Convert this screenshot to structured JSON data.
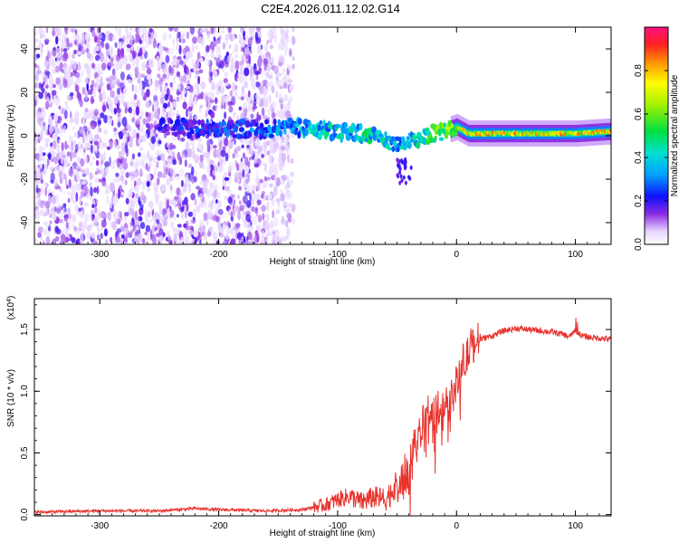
{
  "title": "C2E4.2026.011.12.02.G14",
  "chart_data": [
    {
      "type": "heatmap",
      "name": "spectrogram",
      "xlabel": "Height of straight line (km)",
      "ylabel": "Frequency (Hz)",
      "xlim": [
        -355,
        130
      ],
      "ylim": [
        -50,
        50
      ],
      "xticks": [
        -300,
        -200,
        -100,
        0,
        100
      ],
      "xtick_labels": [
        "-300",
        "-200",
        "-100",
        "0",
        "100"
      ],
      "yticks": [
        -40,
        -20,
        0,
        20,
        40
      ],
      "ytick_labels": [
        "-40",
        "-20",
        "0",
        "20",
        "40"
      ],
      "colorbar": {
        "label": "Normalized spectral amplitude",
        "range": [
          0,
          1
        ],
        "ticks": [
          0.0,
          0.2,
          0.4,
          0.6,
          0.8
        ],
        "tick_labels": [
          "0.0",
          "0.2",
          "0.4",
          "0.6",
          "0.8"
        ]
      },
      "ridge": {
        "x": [
          -355,
          -300,
          -250,
          -200,
          -160,
          -140,
          -120,
          -100,
          -80,
          -70,
          -60,
          -50,
          -40,
          -30,
          -20,
          -10,
          0,
          10,
          30,
          60,
          100,
          130
        ],
        "freq": [
          3,
          3,
          4,
          3,
          3,
          4,
          3,
          2,
          1,
          0,
          -2,
          -4,
          -3,
          -1,
          1,
          2,
          4,
          1,
          1,
          1,
          1,
          2
        ],
        "amplitude": [
          0.15,
          0.15,
          0.2,
          0.25,
          0.3,
          0.35,
          0.4,
          0.42,
          0.45,
          0.45,
          0.4,
          0.38,
          0.4,
          0.45,
          0.55,
          0.62,
          0.7,
          0.65,
          0.6,
          0.6,
          0.6,
          0.6
        ]
      },
      "noise_region_until": -145
    },
    {
      "type": "line",
      "name": "snr",
      "xlabel": "Height of straight line (km)",
      "ylabel": "SNR (10 * v/v)",
      "multiplier_label": "(x10",
      "multiplier_exponent": "4",
      "multiplier_close": ")",
      "xlim": [
        -355,
        130
      ],
      "ylim": [
        -0.01,
        1.75
      ],
      "xticks": [
        -300,
        -200,
        -100,
        0,
        100
      ],
      "xtick_labels": [
        "-300",
        "-200",
        "-100",
        "0",
        "100"
      ],
      "yticks": [
        0.0,
        0.5,
        1.0,
        1.5
      ],
      "ytick_labels": [
        "0.0",
        "0.5",
        "1.0",
        "1.5"
      ],
      "series": [
        {
          "name": "SNR",
          "color": "#e8322c",
          "x": [
            -355,
            -300,
            -250,
            -220,
            -200,
            -160,
            -130,
            -110,
            -100,
            -90,
            -80,
            -70,
            -60,
            -50,
            -45,
            -40,
            -35,
            -30,
            -25,
            -20,
            -15,
            -10,
            -5,
            0,
            5,
            10,
            15,
            20,
            30,
            40,
            50,
            60,
            70,
            80,
            90,
            95,
            100,
            105,
            110,
            120,
            130
          ],
          "values": [
            0.02,
            0.03,
            0.03,
            0.05,
            0.04,
            0.03,
            0.04,
            0.08,
            0.12,
            0.15,
            0.1,
            0.14,
            0.12,
            0.25,
            0.3,
            0.35,
            0.55,
            0.7,
            0.9,
            0.75,
            0.85,
            0.9,
            0.95,
            1.05,
            1.2,
            1.3,
            1.38,
            1.42,
            1.45,
            1.49,
            1.51,
            1.5,
            1.49,
            1.48,
            1.46,
            1.44,
            1.5,
            1.45,
            1.44,
            1.43,
            1.42
          ]
        }
      ]
    }
  ],
  "colors": {
    "line": "#e8322c",
    "axis": "#000000"
  }
}
